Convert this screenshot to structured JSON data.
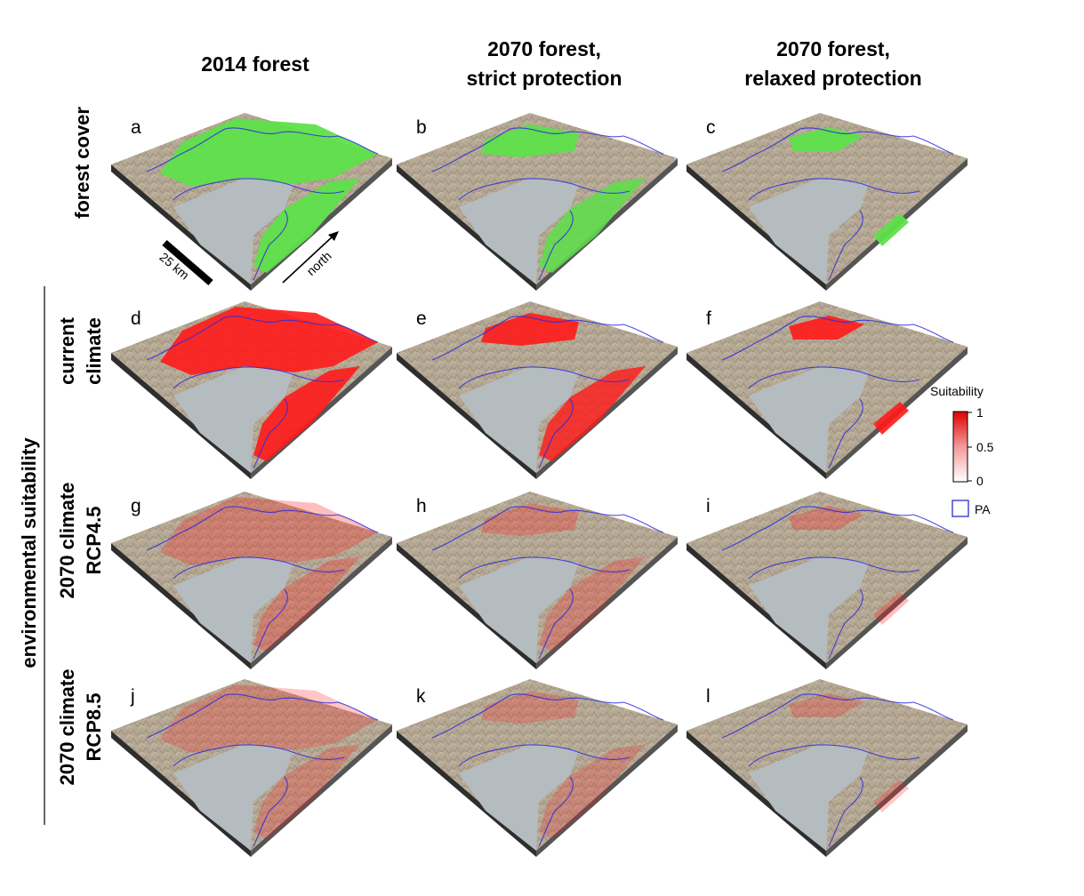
{
  "columns": [
    {
      "lines": [
        "2014 forest"
      ]
    },
    {
      "lines": [
        "2070 forest,",
        "strict protection"
      ]
    },
    {
      "lines": [
        "2070 forest,",
        "relaxed protection"
      ]
    }
  ],
  "row_group_label": "environmental suitability",
  "rows": [
    {
      "lines": [
        "forest cover"
      ],
      "kind": "forest",
      "intensity": 1.0
    },
    {
      "lines": [
        "current",
        "climate"
      ],
      "kind": "suit",
      "intensity": 1.0
    },
    {
      "lines": [
        "2070 climate",
        "RCP4.5"
      ],
      "kind": "suit",
      "intensity": 0.32
    },
    {
      "lines": [
        "2070 climate",
        "RCP8.5"
      ],
      "kind": "suit",
      "intensity": 0.28
    }
  ],
  "panels": [
    {
      "letter": "a",
      "cover": 1.0
    },
    {
      "letter": "b",
      "cover": 0.7
    },
    {
      "letter": "c",
      "cover": 0.3
    },
    {
      "letter": "d",
      "cover": 1.0
    },
    {
      "letter": "e",
      "cover": 0.7
    },
    {
      "letter": "f",
      "cover": 0.3
    },
    {
      "letter": "g",
      "cover": 1.0
    },
    {
      "letter": "h",
      "cover": 0.7
    },
    {
      "letter": "i",
      "cover": 0.3
    },
    {
      "letter": "j",
      "cover": 1.0
    },
    {
      "letter": "k",
      "cover": 0.7
    },
    {
      "letter": "l",
      "cover": 0.3
    }
  ],
  "scale_bar": {
    "label": "25 km"
  },
  "north_arrow": {
    "label": "north"
  },
  "legend": {
    "title": "Suitability",
    "ticks": [
      "1",
      "0.5",
      "0"
    ],
    "pa_label": "PA"
  },
  "colors": {
    "forest": "#5ee04a",
    "suitability_high": "#ff1a1a",
    "terrain": "#b5a894",
    "lake": "#b4bcc0",
    "pa_boundary": "#2a2ae0",
    "base_edge": "#2e2e2e"
  }
}
